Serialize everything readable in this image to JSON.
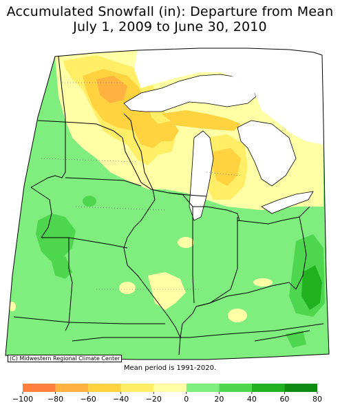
{
  "title_line1": "Accumulated Snowfall (in): Departure from Mean",
  "title_line2": "July 1, 2009 to June 30, 2010",
  "credit": "(C) Midwestern Regional Climate Center",
  "mean_note": "Mean period is 1991-2020.",
  "legend": {
    "labels": [
      "-100",
      "-80",
      "-60",
      "-40",
      "-20",
      "0",
      "20",
      "40",
      "60",
      "80"
    ],
    "colors": [
      "#ff7f3f",
      "#ffb23f",
      "#ffd23f",
      "#ffee66",
      "#ffffa6",
      "#7fee7f",
      "#4fd64f",
      "#20b020",
      "#0e8a0e"
    ]
  },
  "colors": {
    "water": "#ffffff",
    "land_base": "#7fee7f",
    "outside": "#ffffff"
  }
}
